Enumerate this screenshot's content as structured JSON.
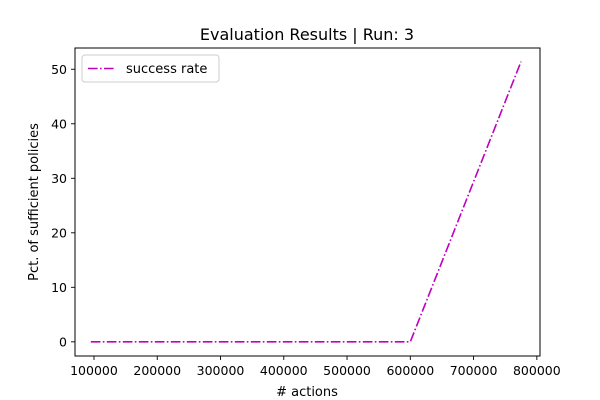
{
  "chart_data": {
    "type": "line",
    "title": "Evaluation Results | Run: 3",
    "xlabel": "# actions",
    "ylabel": "Pct. of sufficient policies",
    "xlim": [
      70000,
      805000
    ],
    "ylim": [
      -2.6,
      53.9
    ],
    "xticks": [
      100000,
      200000,
      300000,
      400000,
      500000,
      600000,
      700000,
      800000
    ],
    "xtick_labels": [
      "100000",
      "200000",
      "300000",
      "400000",
      "500000",
      "600000",
      "700000",
      "800000"
    ],
    "yticks": [
      0,
      10,
      20,
      30,
      40,
      50
    ],
    "ytick_labels": [
      "0",
      "10",
      "20",
      "30",
      "40",
      "50"
    ],
    "grid": false,
    "legend_position": "upper-left",
    "series": [
      {
        "name": "success rate",
        "color": "#bf00bf",
        "linestyle": "dashdot",
        "x": [
          95000,
          600000,
          775000
        ],
        "y": [
          0,
          0,
          51.4
        ]
      }
    ]
  }
}
